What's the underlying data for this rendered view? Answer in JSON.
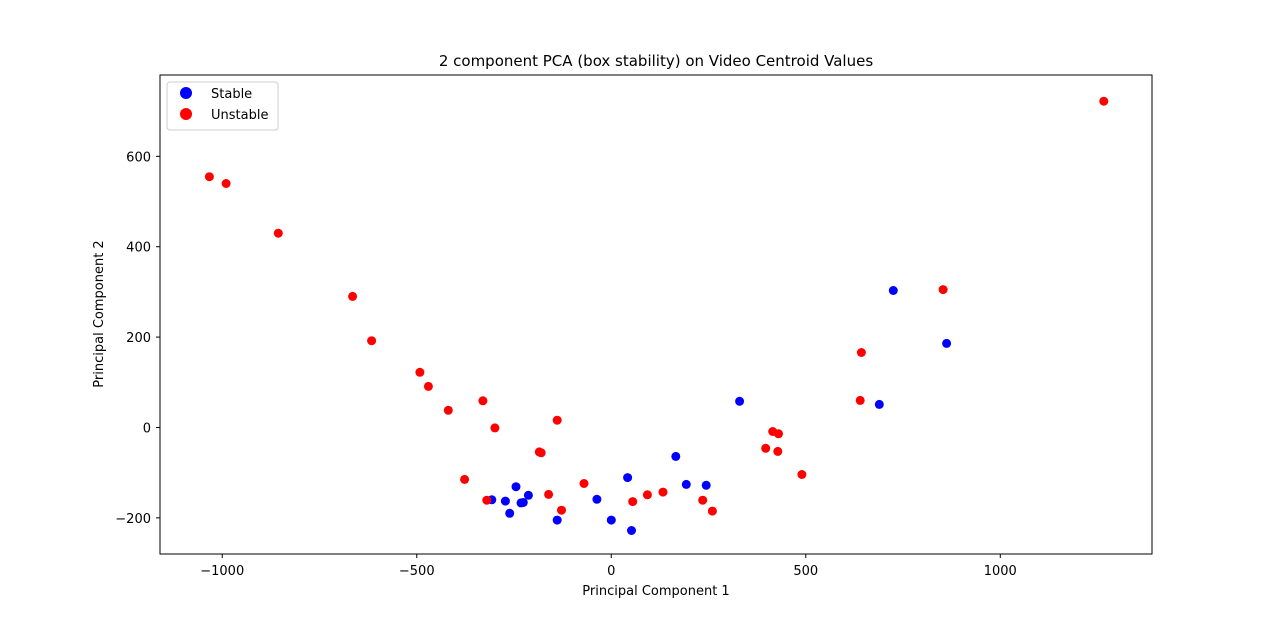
{
  "chart_data": {
    "type": "scatter",
    "title": "2 component PCA (box stability) on Video Centroid Values",
    "xlabel": "Principal Component 1",
    "ylabel": "Principal Component 2",
    "xlim": [
      -1160,
      1390
    ],
    "ylim": [
      -280,
      780
    ],
    "xticks": [
      -1000,
      -500,
      0,
      500,
      1000
    ],
    "yticks": [
      -200,
      0,
      200,
      400,
      600
    ],
    "xtick_labels": [
      "−1000",
      "−500",
      "0",
      "500",
      "1000"
    ],
    "ytick_labels": [
      "−200",
      "0",
      "200",
      "400",
      "600"
    ],
    "grid": false,
    "legend": "upper-left",
    "series": [
      {
        "name": "Stable",
        "color": "#0000ff",
        "points": [
          [
            -307,
            -160
          ],
          [
            -272,
            -163
          ],
          [
            -261,
            -190
          ],
          [
            -245,
            -131
          ],
          [
            -232,
            -167
          ],
          [
            -226,
            -166
          ],
          [
            -213,
            -150
          ],
          [
            -139,
            -205
          ],
          [
            -37,
            -159
          ],
          [
            0,
            -205
          ],
          [
            42,
            -111
          ],
          [
            52,
            -228
          ],
          [
            166,
            -64
          ],
          [
            193,
            -126
          ],
          [
            244,
            -128
          ],
          [
            330,
            58
          ],
          [
            689,
            51
          ],
          [
            725,
            303
          ],
          [
            862,
            186
          ]
        ]
      },
      {
        "name": "Unstable",
        "color": "#ff0000",
        "points": [
          [
            -1033,
            555
          ],
          [
            -990,
            540
          ],
          [
            -856,
            430
          ],
          [
            -665,
            290
          ],
          [
            -616,
            192
          ],
          [
            -492,
            122
          ],
          [
            -470,
            91
          ],
          [
            -419,
            38
          ],
          [
            -377,
            -115
          ],
          [
            -330,
            59
          ],
          [
            -320,
            -161
          ],
          [
            -299,
            -1
          ],
          [
            -185,
            -54
          ],
          [
            -180,
            -56
          ],
          [
            -161,
            -148
          ],
          [
            -139,
            16
          ],
          [
            -128,
            -183
          ],
          [
            -70,
            -124
          ],
          [
            55,
            -164
          ],
          [
            93,
            -149
          ],
          [
            133,
            -143
          ],
          [
            235,
            -161
          ],
          [
            260,
            -185
          ],
          [
            397,
            -46
          ],
          [
            415,
            -9
          ],
          [
            430,
            -14
          ],
          [
            428,
            -53
          ],
          [
            490,
            -104
          ],
          [
            640,
            60
          ],
          [
            643,
            166
          ],
          [
            853,
            305
          ],
          [
            1266,
            722
          ]
        ]
      }
    ]
  }
}
